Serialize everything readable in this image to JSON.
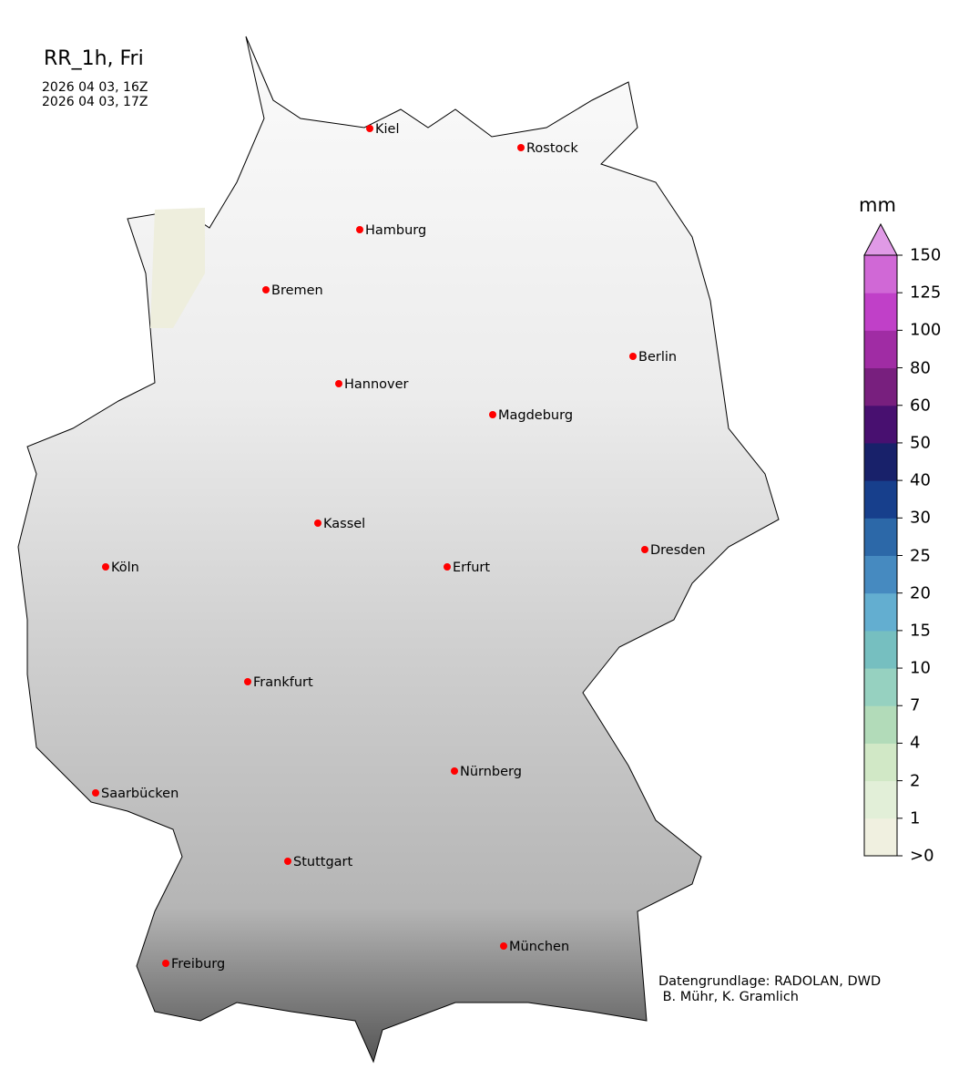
{
  "title": "RR_1h, Fri",
  "time_start": "2026 04 03, 16Z",
  "time_end": "2026 04 03, 17Z",
  "credit": "Datengrundlage: RADOLAN, DWD\n B. Mühr, K. Gramlich",
  "colorbar": {
    "unit": "mm",
    "ticks": [
      ">0",
      "1",
      "2",
      "4",
      "7",
      "10",
      "15",
      "20",
      "25",
      "30",
      "40",
      "50",
      "60",
      "80",
      "100",
      "125",
      "150"
    ],
    "colors": [
      "#f0f0e0",
      "#e2efd8",
      "#d1e8c6",
      "#b2dbb9",
      "#96d1c0",
      "#76bfc0",
      "#63aed0",
      "#468ac0",
      "#2c68a8",
      "#173f8c",
      "#18216a",
      "#481070",
      "#781f7e",
      "#a02ca4",
      "#c040c8",
      "#d068d6"
    ],
    "extend_color": "#e09ae6"
  },
  "cities": [
    {
      "name": "Kiel"
    },
    {
      "name": "Rostock"
    },
    {
      "name": "Hamburg"
    },
    {
      "name": "Bremen"
    },
    {
      "name": "Berlin"
    },
    {
      "name": "Hannover"
    },
    {
      "name": "Magdeburg"
    },
    {
      "name": "Kassel"
    },
    {
      "name": "Köln"
    },
    {
      "name": "Erfurt"
    },
    {
      "name": "Dresden"
    },
    {
      "name": "Frankfurt"
    },
    {
      "name": "Nürnberg"
    },
    {
      "name": "Saarbücken"
    },
    {
      "name": "Stuttgart"
    },
    {
      "name": "München"
    },
    {
      "name": "Freiburg"
    }
  ],
  "city_marker_color": "#ff0000"
}
